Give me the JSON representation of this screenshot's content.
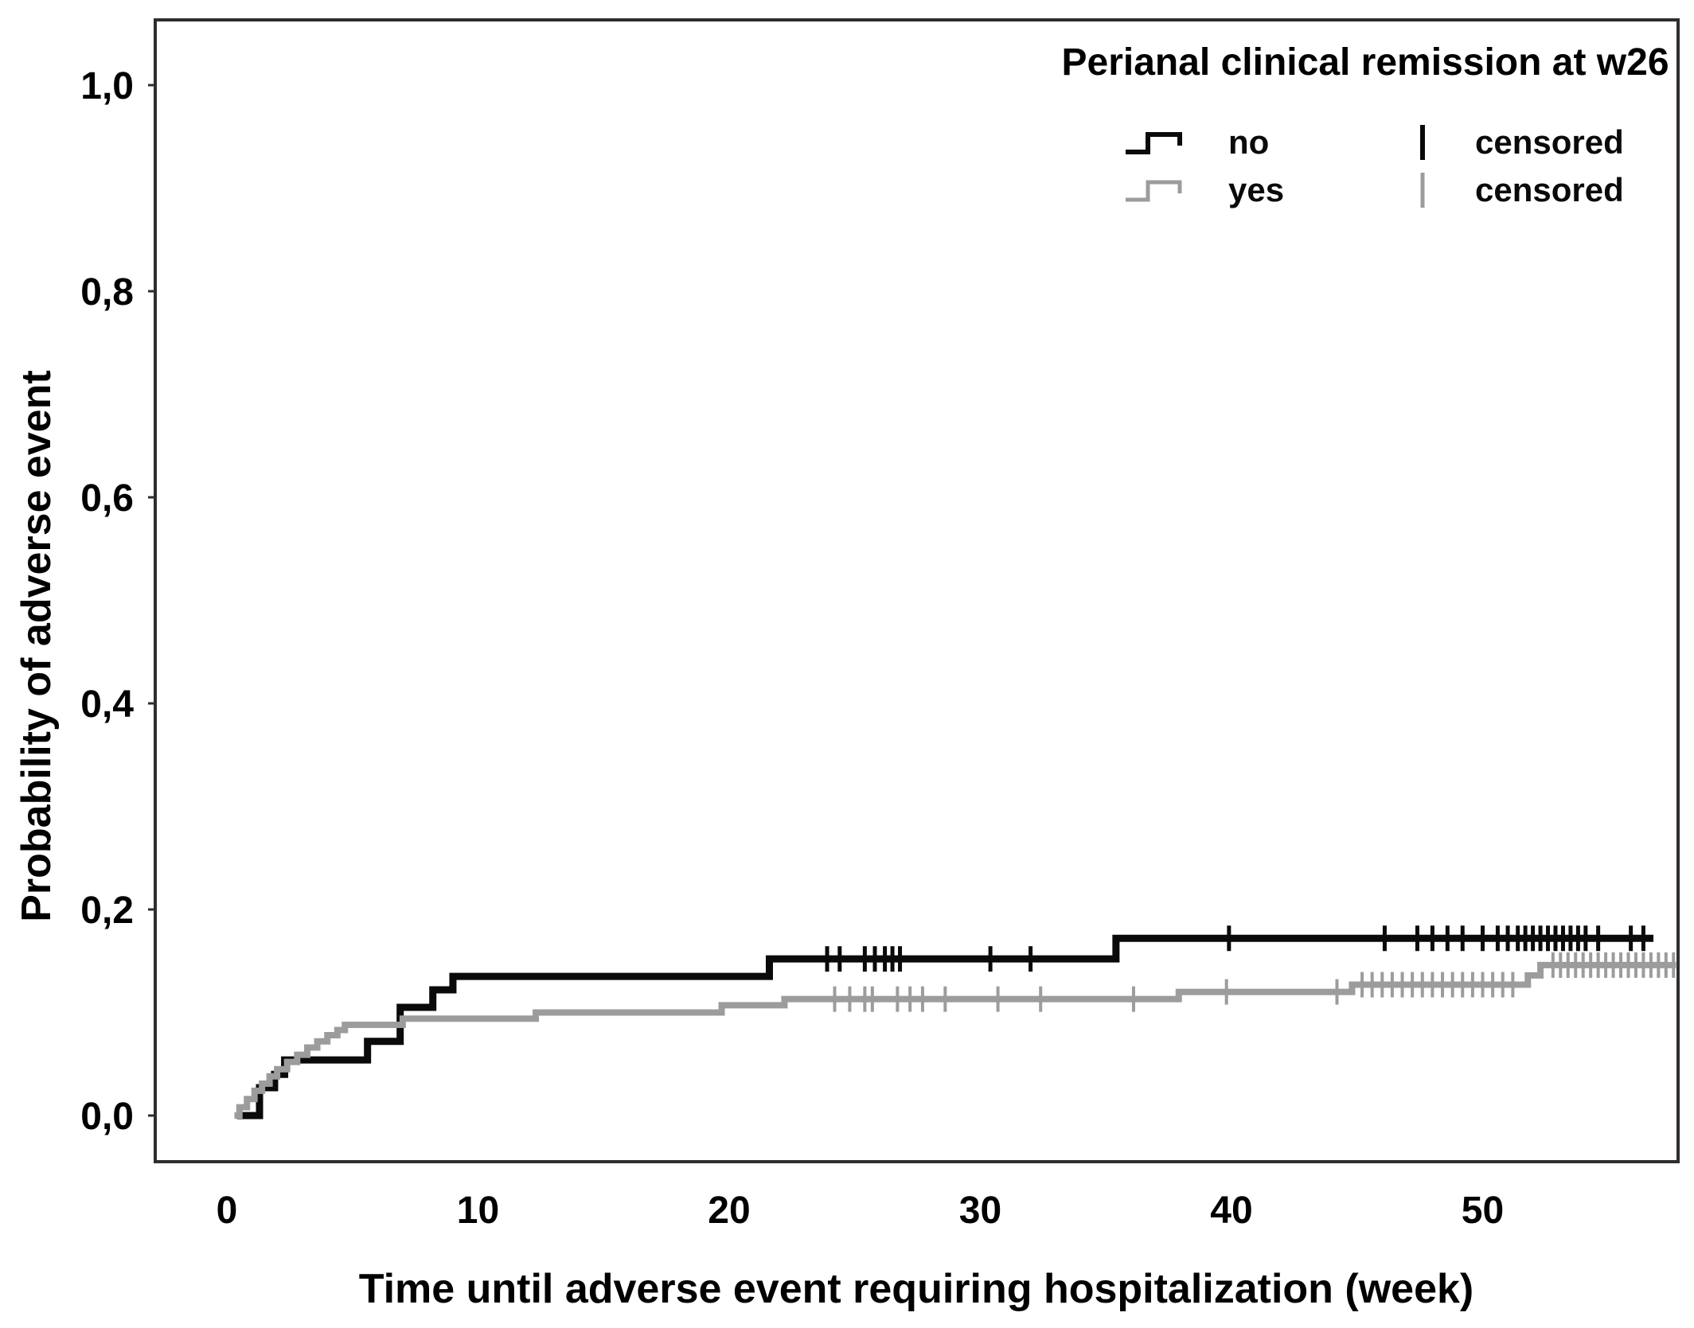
{
  "figure": {
    "y_axis_title": "Probability of adverse event",
    "x_axis_title": "Time until adverse event requiring hospitalization (week)"
  },
  "legend": {
    "title": "Perianal clinical remission at w26",
    "items": [
      {
        "label": "no",
        "symbol": "step-line",
        "color": "#0a0a0a"
      },
      {
        "label": "yes",
        "symbol": "step-line",
        "color": "#9c9c9c"
      },
      {
        "label": "censored",
        "symbol": "tick",
        "color": "#0a0a0a"
      },
      {
        "label": "censored",
        "symbol": "tick",
        "color": "#9c9c9c"
      }
    ]
  },
  "chart_data": {
    "type": "line",
    "subtype": "kaplan-meier-cumulative-incidence-step",
    "title": "Perianal clinical remission at w26",
    "xlabel": "Time until adverse event requiring hospitalization (week)",
    "ylabel": "Probability of adverse event",
    "xlim": [
      -2.9,
      57.8
    ],
    "ylim": [
      -0.045,
      1.063
    ],
    "grid": false,
    "legend_position": "top-right",
    "x_ticks": [
      {
        "value": 0,
        "label": "0"
      },
      {
        "value": 10,
        "label": "10"
      },
      {
        "value": 20,
        "label": "20"
      },
      {
        "value": 30,
        "label": "30"
      },
      {
        "value": 40,
        "label": "40"
      },
      {
        "value": 50,
        "label": "50"
      }
    ],
    "y_ticks": [
      {
        "value": 0.0,
        "label": "0,0"
      },
      {
        "value": 0.2,
        "label": "0,2"
      },
      {
        "value": 0.4,
        "label": "0,4"
      },
      {
        "value": 0.6,
        "label": "0,6"
      },
      {
        "value": 0.8,
        "label": "0,8"
      },
      {
        "value": 1.0,
        "label": "1,0"
      }
    ],
    "series": [
      {
        "name": "no",
        "color": "#0a0a0a",
        "stroke_width": 9,
        "censor_stroke_width": 5,
        "end_t": 56.8,
        "steps": [
          [
            0.4,
            0.0
          ],
          [
            1.3,
            0.027
          ],
          [
            1.9,
            0.04
          ],
          [
            2.3,
            0.054
          ],
          [
            5.6,
            0.072
          ],
          [
            6.9,
            0.105
          ],
          [
            8.2,
            0.122
          ],
          [
            9.0,
            0.135
          ],
          [
            21.6,
            0.152
          ],
          [
            35.4,
            0.172
          ]
        ],
        "censored_t": [
          23.9,
          24.4,
          25.4,
          25.8,
          26.2,
          26.5,
          26.8,
          30.4,
          32.0,
          39.9,
          46.1,
          47.4,
          48.0,
          48.6,
          49.2,
          50.0,
          50.6,
          51.0,
          51.4,
          51.7,
          52.0,
          52.3,
          52.6,
          52.9,
          53.2,
          53.5,
          53.8,
          54.1,
          54.6,
          55.9,
          56.4
        ]
      },
      {
        "name": "yes",
        "color": "#9c9c9c",
        "stroke_width": 8,
        "censor_stroke_width": 4,
        "end_t": 57.7,
        "steps": [
          [
            0.3,
            0.0
          ],
          [
            0.5,
            0.008
          ],
          [
            0.8,
            0.016
          ],
          [
            1.1,
            0.024
          ],
          [
            1.4,
            0.031
          ],
          [
            1.7,
            0.038
          ],
          [
            2.0,
            0.045
          ],
          [
            2.4,
            0.052
          ],
          [
            2.8,
            0.059
          ],
          [
            3.2,
            0.066
          ],
          [
            3.6,
            0.072
          ],
          [
            4.0,
            0.078
          ],
          [
            4.4,
            0.083
          ],
          [
            4.7,
            0.088
          ],
          [
            7.0,
            0.094
          ],
          [
            12.3,
            0.1
          ],
          [
            19.7,
            0.107
          ],
          [
            22.2,
            0.113
          ],
          [
            37.9,
            0.12
          ],
          [
            44.8,
            0.127
          ],
          [
            51.8,
            0.136
          ],
          [
            52.3,
            0.146
          ]
        ],
        "censored_t": [
          24.2,
          24.8,
          25.4,
          25.7,
          26.7,
          27.2,
          27.7,
          28.6,
          30.7,
          32.4,
          36.1,
          39.8,
          44.2,
          45.2,
          45.6,
          46.0,
          46.4,
          46.8,
          47.2,
          47.6,
          48.0,
          48.4,
          48.8,
          49.2,
          49.6,
          50.0,
          50.4,
          50.8,
          51.2,
          52.8,
          53.1,
          53.4,
          53.7,
          54.0,
          54.3,
          54.6,
          54.9,
          55.2,
          55.5,
          55.8,
          56.1,
          56.4,
          56.7,
          57.0,
          57.3,
          57.6
        ]
      }
    ]
  }
}
